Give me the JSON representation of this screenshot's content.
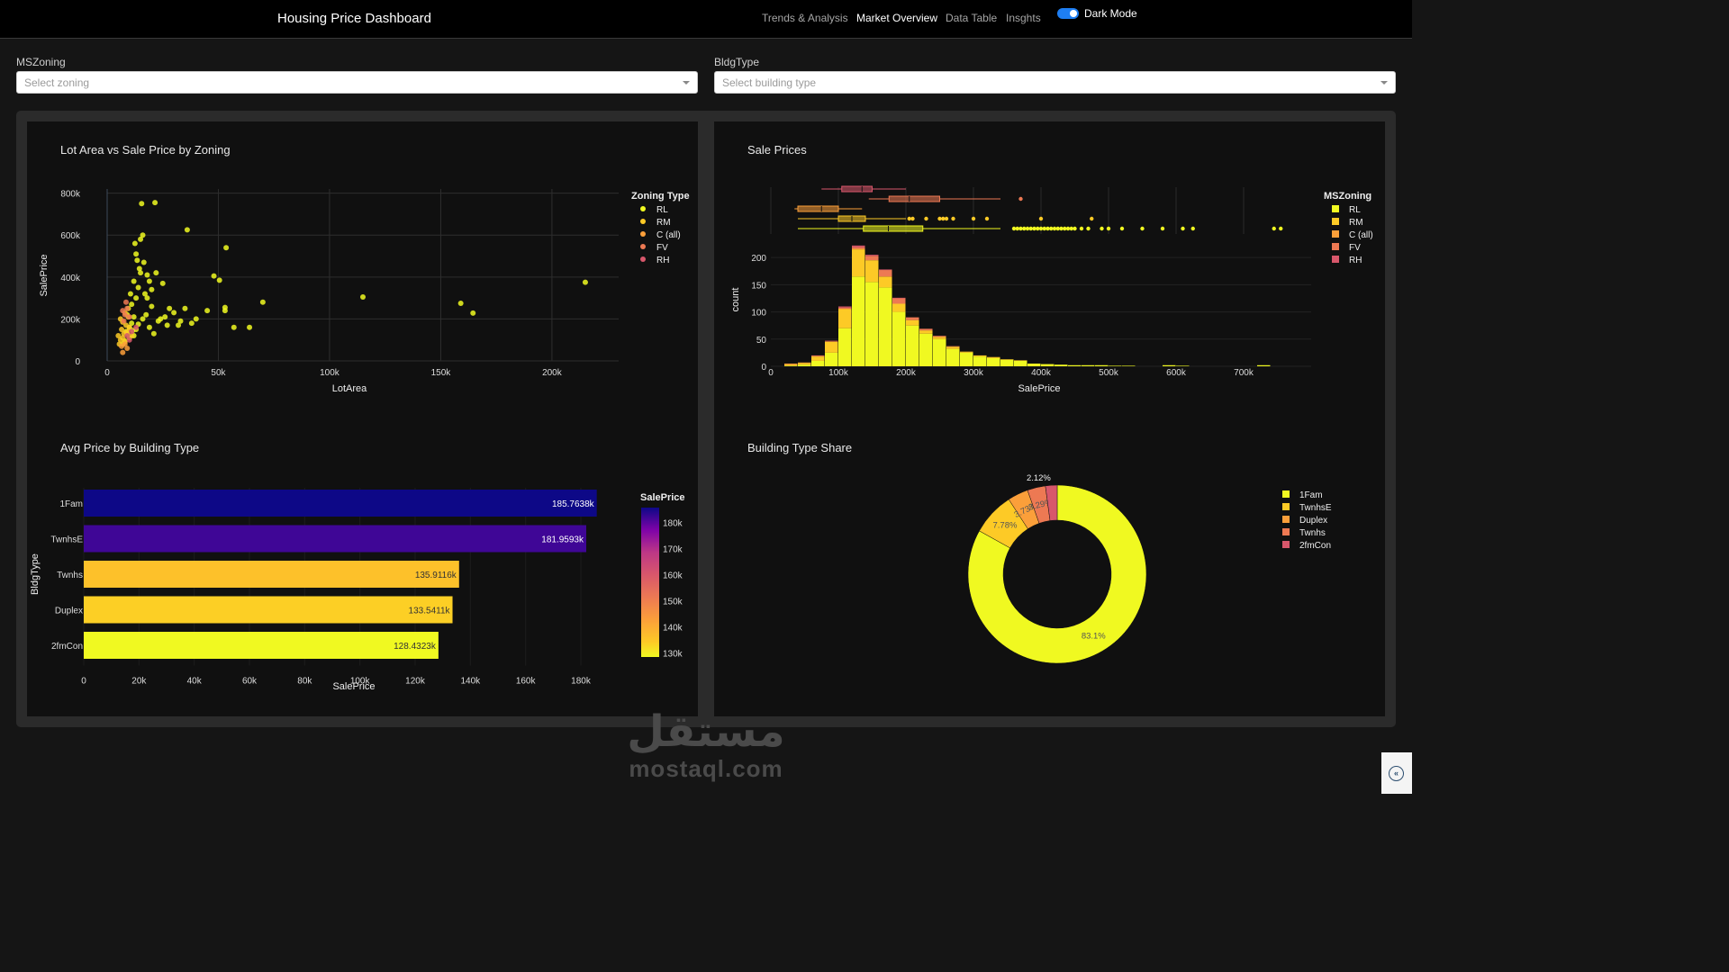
{
  "header": {
    "title": "Housing Price Dashboard",
    "nav": [
      "Trends & Analysis",
      "Market Overview",
      "Data Table",
      "Insghts"
    ],
    "active_nav": "Market Overview",
    "toggle_label": "Dark Mode"
  },
  "filters": {
    "zoning": {
      "label": "MSZoning",
      "placeholder": "Select zoning"
    },
    "bldg": {
      "label": "BldgType",
      "placeholder": "Select building type"
    }
  },
  "colors": {
    "RL": "#f0f921",
    "RM": "#fdca26",
    "C (all)": "#fb9f3a",
    "FV": "#ed7953",
    "RH": "#d8576b"
  },
  "charts": {
    "scatter": {
      "title": "Lot Area vs Sale Price by Zoning",
      "xlabel": "LotArea",
      "ylabel": "SalePrice",
      "x_ticks": [
        "0",
        "50k",
        "100k",
        "150k",
        "200k"
      ],
      "y_ticks": [
        "0",
        "200k",
        "400k",
        "600k",
        "800k"
      ],
      "legend_title": "Zoning Type",
      "legend": [
        "RL",
        "RM",
        "C (all)",
        "FV",
        "RH"
      ]
    },
    "hist": {
      "title": "Sale Prices",
      "xlabel": "SalePrice",
      "ylabel": "count",
      "x_ticks": [
        "0",
        "100k",
        "200k",
        "300k",
        "400k",
        "500k",
        "600k",
        "700k"
      ],
      "y_ticks": [
        "0",
        "50",
        "100",
        "150",
        "200"
      ],
      "legend_title": "MSZoning",
      "legend": [
        "RL",
        "RM",
        "C (all)",
        "FV",
        "RH"
      ]
    },
    "bar": {
      "title": "Avg Price by Building Type",
      "xlabel": "SalePrice",
      "ylabel": "BldgType",
      "x_ticks": [
        "0",
        "20k",
        "40k",
        "60k",
        "80k",
        "100k",
        "120k",
        "140k",
        "160k",
        "180k"
      ],
      "colorbar_title": "SalePrice",
      "colorbar_ticks": [
        "180k",
        "170k",
        "160k",
        "150k",
        "140k",
        "130k"
      ]
    },
    "donut": {
      "title": "Building Type Share",
      "legend": [
        "1Fam",
        "TwnhsE",
        "Duplex",
        "Twnhs",
        "2fmCon"
      ]
    }
  },
  "chart_data": [
    {
      "type": "scatter",
      "title": "Lot Area vs Sale Price by Zoning",
      "xlabel": "LotArea",
      "ylabel": "SalePrice",
      "xlim": [
        0,
        230000
      ],
      "ylim": [
        0,
        820000
      ],
      "series": [
        {
          "name": "RL",
          "points": [
            [
              9000,
              130000
            ],
            [
              10000,
              160000
            ],
            [
              11000,
              180000
            ],
            [
              12000,
              210000
            ],
            [
              8500,
              140000
            ],
            [
              9500,
              250000
            ],
            [
              13000,
              300000
            ],
            [
              14000,
              350000
            ],
            [
              15000,
              420000
            ],
            [
              13500,
              480000
            ],
            [
              12500,
              560000
            ],
            [
              15000,
              580000
            ],
            [
              16000,
              600000
            ],
            [
              15500,
              750000
            ],
            [
              21500,
              755000
            ],
            [
              36000,
              625000
            ],
            [
              53500,
              540000
            ],
            [
              48000,
              405000
            ],
            [
              50500,
              385000
            ],
            [
              53000,
              255000
            ],
            [
              53000,
              240000
            ],
            [
              70000,
              280000
            ],
            [
              57000,
              160000
            ],
            [
              64000,
              160000
            ],
            [
              115000,
              305000
            ],
            [
              159000,
              275000
            ],
            [
              164500,
              228000
            ],
            [
              215000,
              375000
            ],
            [
              22000,
              420000
            ],
            [
              25000,
              370000
            ],
            [
              20000,
              340000
            ],
            [
              30000,
              230000
            ],
            [
              35000,
              250000
            ],
            [
              28000,
              250000
            ],
            [
              33000,
              190000
            ],
            [
              40000,
              200000
            ],
            [
              45000,
              240000
            ],
            [
              32000,
              170000
            ],
            [
              24000,
              200000
            ],
            [
              20000,
              260000
            ],
            [
              18000,
              300000
            ],
            [
              7000,
              80000
            ],
            [
              8000,
              95000
            ],
            [
              10000,
              110000
            ],
            [
              11500,
              145000
            ],
            [
              12000,
              120000
            ],
            [
              13000,
              150000
            ],
            [
              14000,
              175000
            ],
            [
              16000,
              200000
            ],
            [
              17500,
              220000
            ],
            [
              19000,
              160000
            ],
            [
              21000,
              130000
            ],
            [
              23000,
              190000
            ],
            [
              26000,
              210000
            ],
            [
              27000,
              170000
            ],
            [
              38000,
              180000
            ],
            [
              9000,
              220000
            ],
            [
              11000,
              270000
            ],
            [
              10500,
              320000
            ],
            [
              12000,
              380000
            ],
            [
              14500,
              440000
            ],
            [
              13000,
              510000
            ],
            [
              16500,
              470000
            ],
            [
              18000,
              410000
            ],
            [
              19000,
              380000
            ],
            [
              17000,
              320000
            ]
          ]
        },
        {
          "name": "RM",
          "points": [
            [
              6000,
              100000
            ],
            [
              7000,
              110000
            ],
            [
              7500,
              130000
            ],
            [
              8000,
              90000
            ],
            [
              5000,
              120000
            ],
            [
              6500,
              150000
            ],
            [
              9000,
              140000
            ],
            [
              8500,
              170000
            ],
            [
              7000,
              185000
            ],
            [
              10000,
              160000
            ],
            [
              6000,
              200000
            ],
            [
              11000,
              120000
            ],
            [
              5500,
              80000
            ],
            [
              9500,
              210000
            ],
            [
              8000,
              230000
            ]
          ]
        },
        {
          "name": "C (all)",
          "points": [
            [
              7000,
              40000
            ],
            [
              9000,
              60000
            ],
            [
              8000,
              80000
            ],
            [
              6500,
              70000
            ]
          ]
        },
        {
          "name": "FV",
          "points": [
            [
              7500,
              190000
            ],
            [
              8000,
              220000
            ],
            [
              9000,
              250000
            ],
            [
              8500,
              280000
            ],
            [
              10000,
              210000
            ],
            [
              7000,
              240000
            ]
          ]
        },
        {
          "name": "RH",
          "points": [
            [
              9000,
              120000
            ],
            [
              11000,
              140000
            ],
            [
              13000,
              160000
            ],
            [
              10000,
              100000
            ]
          ]
        }
      ]
    },
    {
      "type": "bar",
      "title": "Sale Prices",
      "subtype": "stacked histogram with box plots",
      "xlabel": "SalePrice",
      "ylabel": "count",
      "xlim": [
        0,
        800000
      ],
      "ylim": [
        0,
        230
      ],
      "bin_width": 20000,
      "categories": [
        "40k",
        "60k",
        "80k",
        "100k",
        "120k",
        "140k",
        "160k",
        "180k",
        "200k",
        "220k",
        "240k",
        "260k",
        "280k",
        "300k",
        "320k",
        "340k",
        "360k",
        "380k",
        "400k",
        "420k",
        "440k",
        "460k",
        "480k",
        "500k",
        "520k",
        "540k",
        "560k",
        "580k",
        "600k",
        "620k",
        "640k",
        "660k",
        "680k",
        "700k",
        "720k",
        "740k",
        "760k"
      ],
      "series": [
        {
          "name": "RL",
          "values": [
            1,
            3,
            10,
            25,
            70,
            165,
            155,
            145,
            100,
            75,
            60,
            50,
            32,
            25,
            18,
            15,
            12,
            10,
            5,
            4,
            3,
            2,
            2,
            2,
            1,
            1,
            0,
            0,
            2,
            1,
            0,
            0,
            0,
            0,
            0,
            2,
            0
          ]
        },
        {
          "name": "RM",
          "values": [
            2,
            3,
            8,
            20,
            35,
            50,
            40,
            20,
            15,
            10,
            6,
            4,
            4,
            2,
            2,
            2,
            1,
            1,
            0,
            0,
            0,
            0,
            0,
            0,
            0,
            0,
            0,
            0,
            0,
            0,
            0,
            0,
            0,
            0,
            0,
            0,
            0
          ]
        },
        {
          "name": "C (all)",
          "values": [
            2,
            1,
            1,
            1,
            1,
            1,
            0,
            0,
            0,
            0,
            0,
            0,
            0,
            0,
            0,
            0,
            0,
            0,
            0,
            0,
            0,
            0,
            0,
            0,
            0,
            0,
            0,
            0,
            0,
            0,
            0,
            0,
            0,
            0,
            0,
            0,
            0
          ]
        },
        {
          "name": "FV",
          "values": [
            0,
            0,
            0,
            0,
            2,
            3,
            8,
            12,
            10,
            5,
            3,
            2,
            1,
            0,
            0,
            0,
            0,
            0,
            0,
            0,
            0,
            0,
            0,
            0,
            0,
            0,
            0,
            0,
            0,
            0,
            0,
            0,
            0,
            0,
            0,
            0,
            0
          ]
        },
        {
          "name": "RH",
          "values": [
            0,
            0,
            1,
            1,
            2,
            3,
            2,
            1,
            1,
            0,
            0,
            0,
            0,
            0,
            0,
            0,
            0,
            0,
            0,
            0,
            0,
            0,
            0,
            0,
            0,
            0,
            0,
            0,
            0,
            0,
            0,
            0,
            0,
            0,
            0,
            0,
            0
          ]
        }
      ],
      "boxes": [
        {
          "name": "RL",
          "min": 40000,
          "q1": 137000,
          "median": 174000,
          "q3": 225000,
          "max": 340000,
          "outliers": [
            360000,
            365000,
            370000,
            375000,
            380000,
            385000,
            390000,
            395000,
            400000,
            405000,
            410000,
            415000,
            420000,
            425000,
            430000,
            435000,
            440000,
            445000,
            450000,
            460000,
            470000,
            490000,
            500000,
            520000,
            550000,
            580000,
            610000,
            625000,
            745000,
            755000
          ]
        },
        {
          "name": "RM",
          "min": 40000,
          "q1": 100000,
          "median": 120000,
          "q3": 140000,
          "max": 200000,
          "outliers": [
            205000,
            210000,
            230000,
            250000,
            255000,
            260000,
            270000,
            300000,
            320000,
            400000,
            475000
          ]
        },
        {
          "name": "C (all)",
          "min": 35000,
          "q1": 40000,
          "median": 75000,
          "q3": 100000,
          "max": 135000,
          "outliers": []
        },
        {
          "name": "FV",
          "min": 145000,
          "q1": 175000,
          "median": 205000,
          "q3": 250000,
          "max": 340000,
          "outliers": [
            370000
          ]
        },
        {
          "name": "RH",
          "min": 75000,
          "q1": 105000,
          "median": 135000,
          "q3": 150000,
          "max": 200000,
          "outliers": []
        }
      ]
    },
    {
      "type": "bar",
      "orientation": "horizontal",
      "title": "Avg Price by Building Type",
      "xlabel": "SalePrice",
      "ylabel": "BldgType",
      "xlim": [
        0,
        190000
      ],
      "categories": [
        "1Fam",
        "TwnhsE",
        "Twnhs",
        "Duplex",
        "2fmCon"
      ],
      "values": [
        185763.8,
        181959.3,
        135911.6,
        133541.1,
        128432.3
      ],
      "data_labels": [
        "185.7638k",
        "181.9593k",
        "135.9116k",
        "133.5411k",
        "128.4323k"
      ],
      "colorbar": {
        "title": "SalePrice",
        "range": [
          128432,
          185764
        ]
      }
    },
    {
      "type": "pie",
      "title": "Building Type Share",
      "hole": 0.6,
      "categories": [
        "1Fam",
        "TwnhsE",
        "Duplex",
        "Twnhs",
        "2fmCon"
      ],
      "values": [
        83.1,
        7.78,
        3.73,
        3.29,
        2.12
      ],
      "labels": [
        "83.1%",
        "7.78%",
        "3.73%",
        "3.29%",
        "2.12%"
      ],
      "colors": [
        "#f0f921",
        "#fdca26",
        "#fb9f3a",
        "#ed7953",
        "#d8576b"
      ]
    }
  ],
  "watermark": {
    "arabic": "مستقل",
    "latin": "mostaql.com"
  },
  "collapse_icon": "double-chevron-left-icon"
}
